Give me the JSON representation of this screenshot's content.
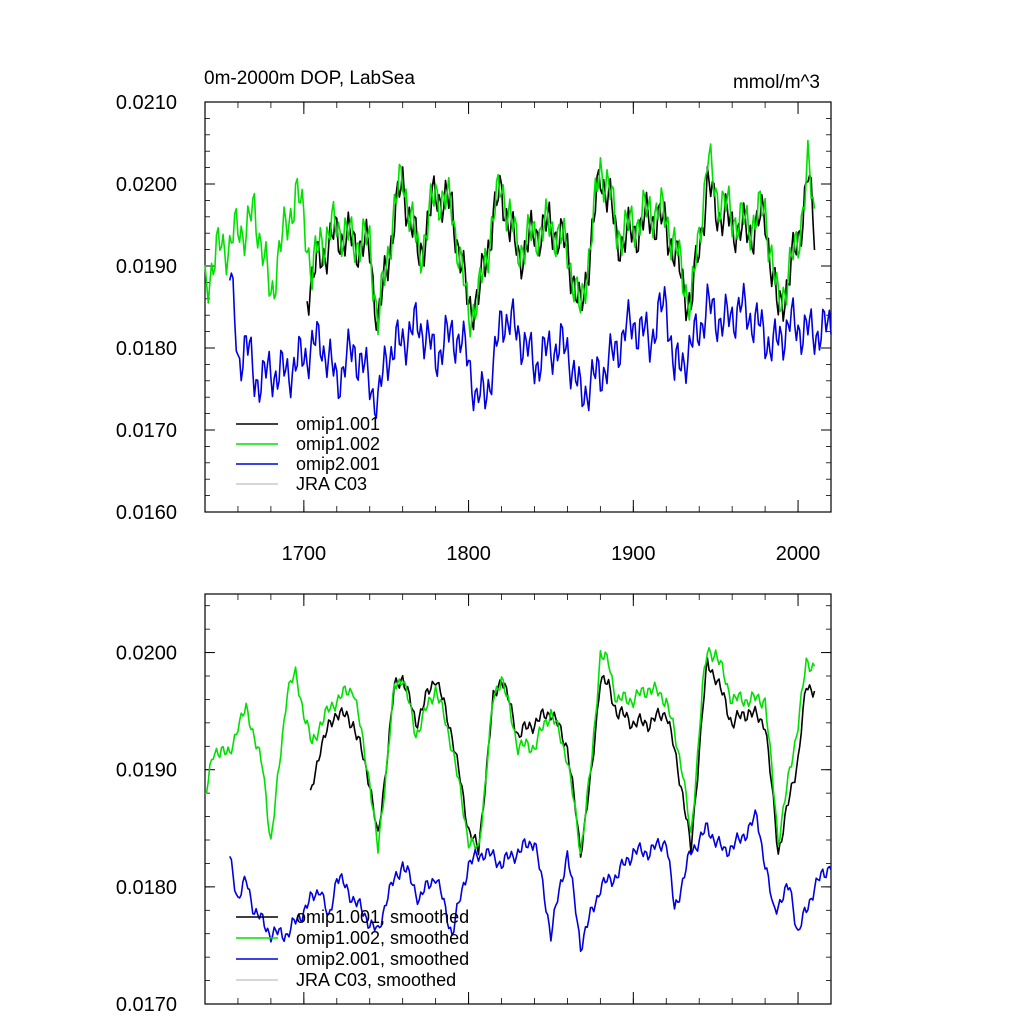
{
  "chart_data": [
    {
      "type": "line",
      "title": "0m-2000m DOP, LabSea",
      "units": "mmol/m^3",
      "xlabel": "",
      "ylabel": "",
      "xlim": [
        1640,
        2020
      ],
      "ylim": [
        0.016,
        0.021
      ],
      "xticks": [
        1700,
        1800,
        1900,
        2000
      ],
      "xticklabels": [
        "1700",
        "1800",
        "1900",
        "2000"
      ],
      "yticks": [
        0.016,
        0.017,
        0.018,
        0.019,
        0.02,
        0.021
      ],
      "yticklabels": [
        "0.0160",
        "0.0170",
        "0.0180",
        "0.0190",
        "0.0200",
        "0.0210"
      ],
      "grid": false,
      "legend_position": "bottom-left",
      "series": [
        {
          "name": "omip1.001",
          "color": "#000000",
          "x": [
            1702,
            1710,
            1720,
            1730,
            1740,
            1745,
            1755,
            1760,
            1770,
            1780,
            1790,
            1800,
            1806,
            1815,
            1820,
            1830,
            1840,
            1850,
            1860,
            1868,
            1880,
            1885,
            1890,
            1900,
            1910,
            1920,
            1930,
            1935,
            1945,
            1950,
            1960,
            1970,
            1980,
            1988,
            2000,
            2006,
            2010
          ],
          "y": [
            0.0187,
            0.0191,
            0.0194,
            0.0193,
            0.0192,
            0.0183,
            0.0196,
            0.02,
            0.0191,
            0.0199,
            0.0197,
            0.0185,
            0.0186,
            0.0196,
            0.0199,
            0.0191,
            0.0194,
            0.0195,
            0.0192,
            0.0184,
            0.0201,
            0.0199,
            0.0193,
            0.0194,
            0.0196,
            0.0195,
            0.0188,
            0.0185,
            0.02,
            0.0197,
            0.0195,
            0.0194,
            0.0196,
            0.0184,
            0.0193,
            0.0201,
            0.0194
          ]
        },
        {
          "name": "omip1.002",
          "color": "#00e000",
          "x": [
            1640,
            1645,
            1650,
            1655,
            1660,
            1665,
            1670,
            1675,
            1680,
            1685,
            1690,
            1695,
            1700,
            1705,
            1710,
            1720,
            1730,
            1740,
            1745,
            1755,
            1760,
            1770,
            1780,
            1790,
            1800,
            1806,
            1815,
            1820,
            1830,
            1840,
            1850,
            1860,
            1868,
            1880,
            1885,
            1890,
            1900,
            1910,
            1920,
            1930,
            1935,
            1945,
            1950,
            1960,
            1970,
            1980,
            1988,
            2000,
            2006,
            2010
          ],
          "y": [
            0.0188,
            0.019,
            0.0193,
            0.0192,
            0.0195,
            0.0194,
            0.0197,
            0.0192,
            0.0186,
            0.0192,
            0.0195,
            0.0199,
            0.0196,
            0.0189,
            0.0193,
            0.0195,
            0.0193,
            0.0193,
            0.0183,
            0.0197,
            0.0201,
            0.0191,
            0.0199,
            0.0197,
            0.0184,
            0.0186,
            0.0196,
            0.02,
            0.0192,
            0.0194,
            0.0195,
            0.0192,
            0.0184,
            0.0202,
            0.02,
            0.0194,
            0.0195,
            0.0197,
            0.0196,
            0.0189,
            0.0185,
            0.0203,
            0.0199,
            0.0196,
            0.0195,
            0.0197,
            0.0185,
            0.0193,
            0.0202,
            0.0196
          ]
        },
        {
          "name": "omip2.001",
          "color": "#0000e0",
          "x": [
            1655,
            1660,
            1665,
            1670,
            1680,
            1690,
            1700,
            1710,
            1720,
            1730,
            1740,
            1745,
            1750,
            1760,
            1770,
            1780,
            1790,
            1800,
            1805,
            1815,
            1820,
            1830,
            1840,
            1850,
            1860,
            1868,
            1875,
            1885,
            1895,
            1900,
            1910,
            1920,
            1925,
            1935,
            1945,
            1955,
            1965,
            1975,
            1985,
            1995,
            2005,
            2015,
            2020
          ],
          "y": [
            0.019,
            0.0178,
            0.0181,
            0.0176,
            0.0177,
            0.0177,
            0.0179,
            0.0181,
            0.0176,
            0.018,
            0.0176,
            0.0173,
            0.0179,
            0.0181,
            0.0183,
            0.0179,
            0.0182,
            0.0179,
            0.0173,
            0.0177,
            0.0184,
            0.0182,
            0.0178,
            0.018,
            0.018,
            0.0174,
            0.0176,
            0.0178,
            0.0182,
            0.0183,
            0.0181,
            0.0186,
            0.0177,
            0.018,
            0.0185,
            0.0183,
            0.0185,
            0.0183,
            0.018,
            0.0183,
            0.0182,
            0.0182,
            0.0183
          ]
        },
        {
          "name": "JRA C03",
          "color": "#c8c8c8",
          "x": [],
          "y": []
        }
      ]
    },
    {
      "type": "line",
      "title": "",
      "xlabel": "",
      "ylabel": "",
      "xlim": [
        1640,
        2020
      ],
      "ylim": [
        0.017,
        0.0205
      ],
      "yticks": [
        0.017,
        0.018,
        0.019,
        0.02
      ],
      "yticklabels": [
        "0.0170",
        "0.0180",
        "0.0190",
        "0.0200"
      ],
      "grid": false,
      "legend_position": "bottom-left",
      "series": [
        {
          "name": "omip1.001, smoothed",
          "color": "#000000",
          "x": [
            1704,
            1710,
            1720,
            1730,
            1740,
            1745,
            1755,
            1760,
            1768,
            1780,
            1790,
            1800,
            1806,
            1815,
            1820,
            1830,
            1840,
            1850,
            1860,
            1868,
            1875,
            1880,
            1885,
            1890,
            1900,
            1910,
            1920,
            1930,
            1935,
            1942,
            1945,
            1950,
            1960,
            1970,
            1980,
            1988,
            2000,
            2005,
            2010
          ],
          "y": [
            0.01875,
            0.0192,
            0.0195,
            0.0194,
            0.0189,
            0.0184,
            0.0197,
            0.0198,
            0.0194,
            0.0198,
            0.0193,
            0.0185,
            0.0183,
            0.0196,
            0.0198,
            0.0193,
            0.0194,
            0.0195,
            0.0192,
            0.0183,
            0.019,
            0.0198,
            0.0197,
            0.0195,
            0.0194,
            0.0194,
            0.0195,
            0.0188,
            0.0183,
            0.0195,
            0.0199,
            0.0198,
            0.0194,
            0.0195,
            0.0194,
            0.0183,
            0.0191,
            0.0197,
            0.0197
          ]
        },
        {
          "name": "omip1.002, smoothed",
          "color": "#00e000",
          "x": [
            1640,
            1645,
            1650,
            1655,
            1660,
            1665,
            1670,
            1675,
            1680,
            1685,
            1690,
            1695,
            1700,
            1705,
            1710,
            1720,
            1730,
            1740,
            1745,
            1755,
            1760,
            1768,
            1780,
            1790,
            1800,
            1806,
            1815,
            1820,
            1830,
            1840,
            1850,
            1860,
            1868,
            1875,
            1880,
            1885,
            1890,
            1900,
            1910,
            1920,
            1930,
            1935,
            1942,
            1945,
            1950,
            1960,
            1970,
            1980,
            1988,
            2000,
            2005,
            2010
          ],
          "y": [
            0.0188,
            0.0191,
            0.0192,
            0.0191,
            0.0194,
            0.0195,
            0.0193,
            0.019,
            0.0184,
            0.019,
            0.0197,
            0.0198,
            0.0195,
            0.0192,
            0.0194,
            0.0196,
            0.0197,
            0.0189,
            0.0183,
            0.0197,
            0.0198,
            0.0193,
            0.0197,
            0.0192,
            0.0184,
            0.0183,
            0.0196,
            0.0198,
            0.0192,
            0.0192,
            0.0195,
            0.0191,
            0.0183,
            0.0191,
            0.02,
            0.0199,
            0.0196,
            0.0196,
            0.0197,
            0.0196,
            0.019,
            0.0184,
            0.0197,
            0.02,
            0.02,
            0.0196,
            0.0196,
            0.0196,
            0.0184,
            0.0194,
            0.0199,
            0.0199
          ]
        },
        {
          "name": "omip2.001, smoothed",
          "color": "#0000e0",
          "x": [
            1655,
            1660,
            1665,
            1670,
            1675,
            1680,
            1690,
            1700,
            1710,
            1715,
            1720,
            1730,
            1740,
            1745,
            1750,
            1760,
            1770,
            1780,
            1790,
            1800,
            1810,
            1820,
            1830,
            1840,
            1850,
            1860,
            1868,
            1880,
            1890,
            1900,
            1910,
            1920,
            1925,
            1935,
            1945,
            1955,
            1965,
            1975,
            1985,
            1995,
            2000,
            2010,
            2020
          ],
          "y": [
            0.01825,
            0.0179,
            0.01805,
            0.0178,
            0.0177,
            0.0176,
            0.0176,
            0.0178,
            0.018,
            0.0177,
            0.0181,
            0.0179,
            0.0177,
            0.0176,
            0.0179,
            0.0182,
            0.0179,
            0.0181,
            0.0176,
            0.0182,
            0.0183,
            0.0182,
            0.0183,
            0.0184,
            0.0176,
            0.0183,
            0.0175,
            0.018,
            0.0181,
            0.0183,
            0.0183,
            0.0184,
            0.0178,
            0.0183,
            0.0185,
            0.0183,
            0.0184,
            0.0186,
            0.0178,
            0.018,
            0.0176,
            0.018,
            0.0182
          ]
        },
        {
          "name": "JRA C03, smoothed",
          "color": "#c8c8c8",
          "x": [],
          "y": []
        }
      ]
    }
  ]
}
